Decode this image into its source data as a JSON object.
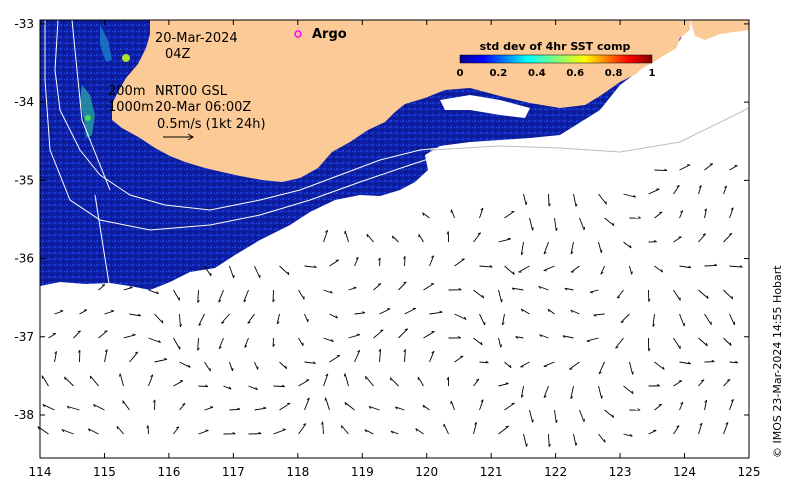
{
  "chart_data": {
    "type": "heatmap",
    "title": "std dev of 4hr SST comp",
    "date_label": "20-Mar-2024",
    "time_label": "04Z",
    "legend_marker": "Argo",
    "contour_labels": [
      "200m",
      "1000m"
    ],
    "source_label": "NRT00 GSL",
    "current_time_label": "20-Mar 06:00Z",
    "scale_label": "0.5m/s (1kt 24h)",
    "credit": "© IMOS 23-Mar-2024 14:55 Hobart",
    "x_ticks": [
      "114",
      "115",
      "116",
      "117",
      "118",
      "119",
      "120",
      "121",
      "122",
      "123",
      "124",
      "125"
    ],
    "y_ticks": [
      "-33",
      "-34",
      "-35",
      "-36",
      "-37",
      "-38"
    ],
    "xlim": [
      114,
      125
    ],
    "ylim": [
      -38.55,
      -32.95
    ],
    "colorbar_ticks": [
      "0",
      "0.2",
      "0.4",
      "0.6",
      "0.8",
      "1"
    ],
    "colorbar_range": [
      0,
      1
    ],
    "colors": {
      "land": "#fcca96",
      "sst_low": "#0a1a8f",
      "sst_mid": "#1c3fd1",
      "sst_high": "#3fd48a",
      "argo_marker": "#ff00ff"
    }
  }
}
